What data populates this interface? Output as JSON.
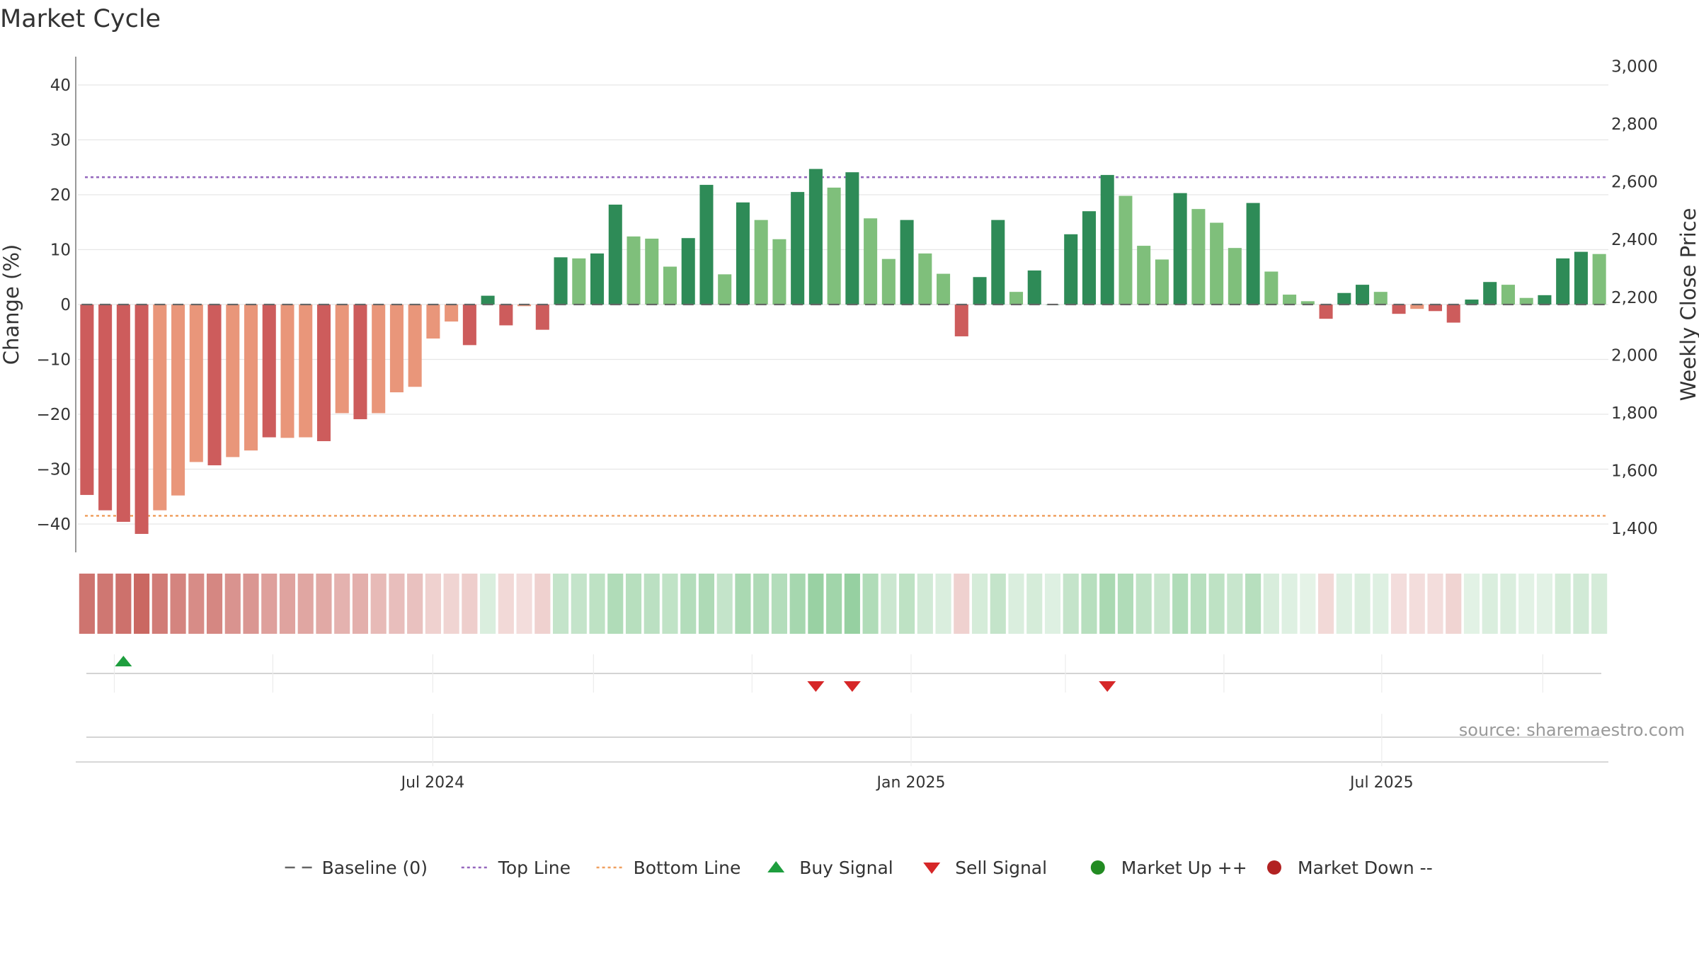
{
  "chart_data": {
    "type": "bar",
    "title": "Market Cycle",
    "ylabel": "Change (%)",
    "y2label": "Weekly Close Price",
    "ylim": [
      -45,
      45
    ],
    "y2lim": [
      1320,
      3030
    ],
    "yticks": [
      40,
      30,
      20,
      10,
      0,
      -10,
      -20,
      -30,
      -40
    ],
    "ytick_labels": [
      "40",
      "30",
      "20",
      "10",
      "0",
      "−10",
      "−20",
      "−30",
      "−40"
    ],
    "y2ticks": [
      3000,
      2800,
      2600,
      2400,
      2200,
      2000,
      1800,
      1600,
      1400
    ],
    "y2tick_labels": [
      "3,000",
      "2,800",
      "2,600",
      "2,400",
      "2,200",
      "2,000",
      "1,800",
      "1,600",
      "1,400"
    ],
    "top_line": 23.2,
    "bottom_line": -38.5,
    "values": [
      -34.7,
      -37.5,
      -39.6,
      -41.8,
      -37.5,
      -34.8,
      -28.7,
      -29.3,
      -27.8,
      -26.6,
      -24.2,
      -24.3,
      -24.2,
      -24.9,
      -19.8,
      -20.9,
      -19.8,
      -16.0,
      -15.0,
      -6.2,
      -3.1,
      -7.4,
      1.6,
      -3.8,
      -0.3,
      -4.6,
      8.6,
      8.4,
      9.3,
      18.2,
      12.4,
      12.0,
      6.9,
      12.1,
      21.8,
      5.5,
      18.6,
      15.4,
      11.9,
      20.5,
      24.7,
      21.3,
      24.1,
      15.7,
      8.3,
      15.4,
      9.3,
      5.6,
      -5.8,
      5.0,
      15.4,
      2.3,
      6.2,
      0.0,
      12.8,
      17.0,
      23.6,
      19.8,
      10.7,
      8.2,
      20.3,
      17.4,
      14.9,
      10.3,
      18.5,
      6.0,
      1.8,
      0.6,
      -2.6,
      2.1,
      3.6,
      2.3,
      -1.7,
      -0.8,
      -1.2,
      -3.3,
      0.9,
      4.1,
      3.6,
      1.2,
      1.7,
      8.4,
      9.6,
      9.2
    ],
    "bar_shade": [
      "D",
      "D",
      "D",
      "D",
      "L",
      "L",
      "L",
      "D",
      "L",
      "L",
      "D",
      "L",
      "L",
      "D",
      "L",
      "D",
      "L",
      "L",
      "L",
      "L",
      "L",
      "D",
      "D",
      "D",
      "L",
      "D",
      "D",
      "L",
      "D",
      "D",
      "L",
      "L",
      "L",
      "D",
      "D",
      "L",
      "D",
      "L",
      "L",
      "D",
      "D",
      "L",
      "D",
      "L",
      "L",
      "D",
      "L",
      "L",
      "D",
      "D",
      "D",
      "L",
      "D",
      "D",
      "D",
      "D",
      "D",
      "L",
      "L",
      "L",
      "D",
      "L",
      "L",
      "L",
      "D",
      "L",
      "L",
      "L",
      "D",
      "D",
      "D",
      "L",
      "D",
      "L",
      "D",
      "D",
      "D",
      "D",
      "L",
      "L",
      "D",
      "D",
      "D",
      "L"
    ],
    "heat_intensity": [
      0.9,
      0.88,
      0.92,
      0.98,
      0.85,
      0.8,
      0.75,
      0.78,
      0.7,
      0.68,
      0.62,
      0.6,
      0.58,
      0.56,
      0.5,
      0.52,
      0.45,
      0.42,
      0.4,
      0.3,
      0.28,
      0.32,
      0.28,
      0.25,
      0.22,
      0.3,
      0.45,
      0.45,
      0.5,
      0.6,
      0.55,
      0.52,
      0.48,
      0.58,
      0.62,
      0.45,
      0.65,
      0.62,
      0.58,
      0.68,
      0.78,
      0.72,
      0.8,
      0.6,
      0.4,
      0.5,
      0.35,
      0.28,
      0.3,
      0.32,
      0.45,
      0.28,
      0.32,
      0.25,
      0.45,
      0.55,
      0.65,
      0.6,
      0.48,
      0.42,
      0.6,
      0.55,
      0.5,
      0.42,
      0.55,
      0.3,
      0.25,
      0.2,
      0.25,
      0.25,
      0.28,
      0.25,
      0.22,
      0.22,
      0.22,
      0.28,
      0.22,
      0.28,
      0.28,
      0.22,
      0.22,
      0.32,
      0.35,
      0.32
    ],
    "buy_signals": [
      2
    ],
    "sell_signals": [
      40,
      42,
      56
    ],
    "date_ticks": [
      "Jul 2024",
      "Jan 2025",
      "Jul 2025"
    ],
    "date_tick_index": [
      19.48,
      45.73,
      71.56
    ],
    "minor_grid_index": [
      2,
      10.7,
      19.48,
      28.3,
      37,
      45.73,
      54.2,
      62.9,
      71.56,
      80.4
    ],
    "legend_position": "bottom-center",
    "legend": [
      {
        "name": "Baseline (0)",
        "symbol": "dash",
        "color": "#666666"
      },
      {
        "name": "Top Line",
        "symbol": "dotted",
        "color": "#9467bd"
      },
      {
        "name": "Bottom Line",
        "symbol": "dotted",
        "color": "#f0a060"
      },
      {
        "name": "Buy Signal",
        "symbol": "triangle-up",
        "color": "#1e9e3e"
      },
      {
        "name": "Sell Signal",
        "symbol": "triangle-down",
        "color": "#d62728"
      },
      {
        "name": "Market Up ++",
        "symbol": "circle",
        "color": "#228b22"
      },
      {
        "name": "Market Down --",
        "symbol": "circle",
        "color": "#b22222"
      }
    ],
    "colors": {
      "pos_dark": "#2e8b57",
      "pos_light": "#7fbf7b",
      "neg_dark": "#cd5c5c",
      "neg_light": "#e9967a",
      "heat_pos": "#7cc489",
      "heat_neg": "#c9655f",
      "grid": "#e6e6e6",
      "top_line": "#9467bd",
      "bottom_line": "#f0a060",
      "baseline": "#666666",
      "buy": "#1e9e3e",
      "sell": "#d62728"
    }
  },
  "source_text": "source: sharemaestro.com"
}
